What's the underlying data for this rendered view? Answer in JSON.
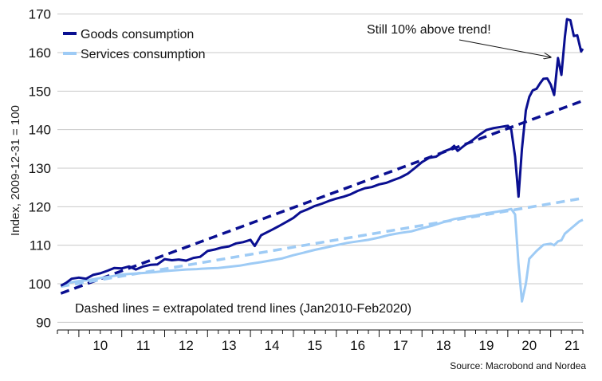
{
  "chart_data": {
    "type": "line",
    "title": "",
    "ylabel": "Index, 2009-12-31 = 100",
    "xlabel": "",
    "ylim": [
      88,
      172
    ],
    "xlim": [
      2009.5,
      2021.75
    ],
    "yticks": [
      90,
      100,
      110,
      120,
      130,
      140,
      150,
      160,
      170
    ],
    "xtick_labels": [
      "10",
      "11",
      "12",
      "13",
      "14",
      "15",
      "16",
      "17",
      "18",
      "19",
      "20",
      "21"
    ],
    "xtick_centers": [
      2010.5,
      2011.5,
      2012.5,
      2013.5,
      2014.5,
      2015.5,
      2016.5,
      2017.5,
      2018.5,
      2019.5,
      2020.5,
      2021.5
    ],
    "grid": "horizontal",
    "legend_position": "top-left",
    "colors": {
      "goods": "#0a0f91",
      "services": "#9ecbf5"
    },
    "series": [
      {
        "name": "Goods consumption",
        "key": "goods",
        "style": "solid",
        "points": [
          [
            2009.58,
            99.5
          ],
          [
            2009.7,
            100.2
          ],
          [
            2009.83,
            101.3
          ],
          [
            2010.0,
            101.6
          ],
          [
            2010.17,
            101.3
          ],
          [
            2010.33,
            102.3
          ],
          [
            2010.5,
            102.7
          ],
          [
            2010.67,
            103.4
          ],
          [
            2010.83,
            104.1
          ],
          [
            2011.0,
            104.0
          ],
          [
            2011.17,
            104.5
          ],
          [
            2011.33,
            103.7
          ],
          [
            2011.5,
            104.5
          ],
          [
            2011.67,
            104.9
          ],
          [
            2011.83,
            105.0
          ],
          [
            2012.0,
            106.4
          ],
          [
            2012.17,
            106.1
          ],
          [
            2012.33,
            106.3
          ],
          [
            2012.5,
            106.0
          ],
          [
            2012.67,
            106.7
          ],
          [
            2012.83,
            107.0
          ],
          [
            2013.0,
            108.5
          ],
          [
            2013.17,
            108.9
          ],
          [
            2013.33,
            109.4
          ],
          [
            2013.5,
            109.7
          ],
          [
            2013.67,
            110.5
          ],
          [
            2013.83,
            110.8
          ],
          [
            2014.0,
            111.4
          ],
          [
            2014.1,
            109.8
          ],
          [
            2014.25,
            112.6
          ],
          [
            2014.5,
            114.0
          ],
          [
            2014.67,
            115.0
          ],
          [
            2014.83,
            116.0
          ],
          [
            2015.0,
            117.1
          ],
          [
            2015.17,
            118.6
          ],
          [
            2015.33,
            119.3
          ],
          [
            2015.5,
            120.2
          ],
          [
            2015.67,
            120.8
          ],
          [
            2015.83,
            121.5
          ],
          [
            2016.0,
            122.1
          ],
          [
            2016.17,
            122.6
          ],
          [
            2016.33,
            123.2
          ],
          [
            2016.5,
            124.1
          ],
          [
            2016.67,
            124.8
          ],
          [
            2016.83,
            125.1
          ],
          [
            2017.0,
            125.8
          ],
          [
            2017.17,
            126.2
          ],
          [
            2017.33,
            126.9
          ],
          [
            2017.5,
            127.6
          ],
          [
            2017.67,
            128.6
          ],
          [
            2017.83,
            130.0
          ],
          [
            2018.0,
            131.6
          ],
          [
            2018.17,
            132.7
          ],
          [
            2018.33,
            133.0
          ],
          [
            2018.5,
            134.3
          ],
          [
            2018.67,
            135.0
          ],
          [
            2018.75,
            135.8
          ],
          [
            2018.83,
            134.5
          ],
          [
            2019.0,
            136.0
          ],
          [
            2019.17,
            137.2
          ],
          [
            2019.33,
            138.6
          ],
          [
            2019.5,
            139.9
          ],
          [
            2019.67,
            140.4
          ],
          [
            2019.83,
            140.7
          ],
          [
            2020.0,
            141.0
          ],
          [
            2020.08,
            140.0
          ],
          [
            2020.17,
            133.0
          ],
          [
            2020.25,
            122.6
          ],
          [
            2020.33,
            135.0
          ],
          [
            2020.42,
            145.0
          ],
          [
            2020.5,
            148.5
          ],
          [
            2020.58,
            150.2
          ],
          [
            2020.67,
            150.6
          ],
          [
            2020.75,
            152.0
          ],
          [
            2020.83,
            153.2
          ],
          [
            2020.92,
            153.3
          ],
          [
            2021.0,
            151.7
          ],
          [
            2021.08,
            149.0
          ],
          [
            2021.17,
            158.6
          ],
          [
            2021.25,
            154.2
          ],
          [
            2021.33,
            164.0
          ],
          [
            2021.38,
            168.7
          ],
          [
            2021.46,
            168.4
          ],
          [
            2021.54,
            164.3
          ],
          [
            2021.62,
            164.5
          ],
          [
            2021.71,
            160.3
          ],
          [
            2021.75,
            161.0
          ]
        ]
      },
      {
        "name": "Services consumption",
        "key": "services",
        "style": "solid",
        "points": [
          [
            2009.58,
            99.6
          ],
          [
            2009.83,
            100.4
          ],
          [
            2010.0,
            100.7
          ],
          [
            2010.25,
            101.0
          ],
          [
            2010.5,
            101.5
          ],
          [
            2010.75,
            101.9
          ],
          [
            2011.0,
            102.4
          ],
          [
            2011.25,
            102.6
          ],
          [
            2011.5,
            102.8
          ],
          [
            2011.75,
            103.0
          ],
          [
            2012.0,
            103.3
          ],
          [
            2012.25,
            103.5
          ],
          [
            2012.5,
            103.7
          ],
          [
            2012.75,
            103.8
          ],
          [
            2013.0,
            104.0
          ],
          [
            2013.25,
            104.1
          ],
          [
            2013.5,
            104.4
          ],
          [
            2013.75,
            104.7
          ],
          [
            2014.0,
            105.2
          ],
          [
            2014.25,
            105.6
          ],
          [
            2014.5,
            106.1
          ],
          [
            2014.75,
            106.6
          ],
          [
            2015.0,
            107.4
          ],
          [
            2015.25,
            108.1
          ],
          [
            2015.5,
            108.8
          ],
          [
            2015.75,
            109.4
          ],
          [
            2016.0,
            110.0
          ],
          [
            2016.25,
            110.6
          ],
          [
            2016.5,
            111.0
          ],
          [
            2016.75,
            111.4
          ],
          [
            2017.0,
            112.0
          ],
          [
            2017.25,
            112.7
          ],
          [
            2017.5,
            113.2
          ],
          [
            2017.75,
            113.6
          ],
          [
            2018.0,
            114.4
          ],
          [
            2018.25,
            115.1
          ],
          [
            2018.5,
            116.0
          ],
          [
            2018.75,
            116.8
          ],
          [
            2019.0,
            117.3
          ],
          [
            2019.25,
            117.7
          ],
          [
            2019.5,
            118.3
          ],
          [
            2019.75,
            118.7
          ],
          [
            2020.0,
            119.2
          ],
          [
            2020.08,
            119.4
          ],
          [
            2020.17,
            118.0
          ],
          [
            2020.25,
            105.0
          ],
          [
            2020.33,
            95.4
          ],
          [
            2020.42,
            100.0
          ],
          [
            2020.5,
            106.5
          ],
          [
            2020.67,
            108.5
          ],
          [
            2020.83,
            110.1
          ],
          [
            2021.0,
            110.4
          ],
          [
            2021.08,
            110.0
          ],
          [
            2021.17,
            111.0
          ],
          [
            2021.25,
            111.3
          ],
          [
            2021.33,
            113.0
          ],
          [
            2021.5,
            114.6
          ],
          [
            2021.67,
            116.2
          ],
          [
            2021.75,
            116.6
          ]
        ]
      },
      {
        "name": "",
        "key": "goods_trend",
        "style": "dashed",
        "color_key": "goods",
        "points": [
          [
            2009.58,
            97.5
          ],
          [
            2021.75,
            147.5
          ]
        ]
      },
      {
        "name": "",
        "key": "services_trend",
        "style": "dashed",
        "color_key": "services",
        "points": [
          [
            2009.58,
            99.3
          ],
          [
            2021.75,
            122.2
          ]
        ]
      }
    ],
    "annotations": [
      {
        "text": "Still 10% above trend!",
        "arrow_to": [
          2021.0,
          158.8
        ]
      },
      {
        "text": "Dashed lines = extrapolated trend lines (Jan2010-Feb2020)"
      }
    ],
    "source": "Source: Macrobond and Nordea"
  }
}
